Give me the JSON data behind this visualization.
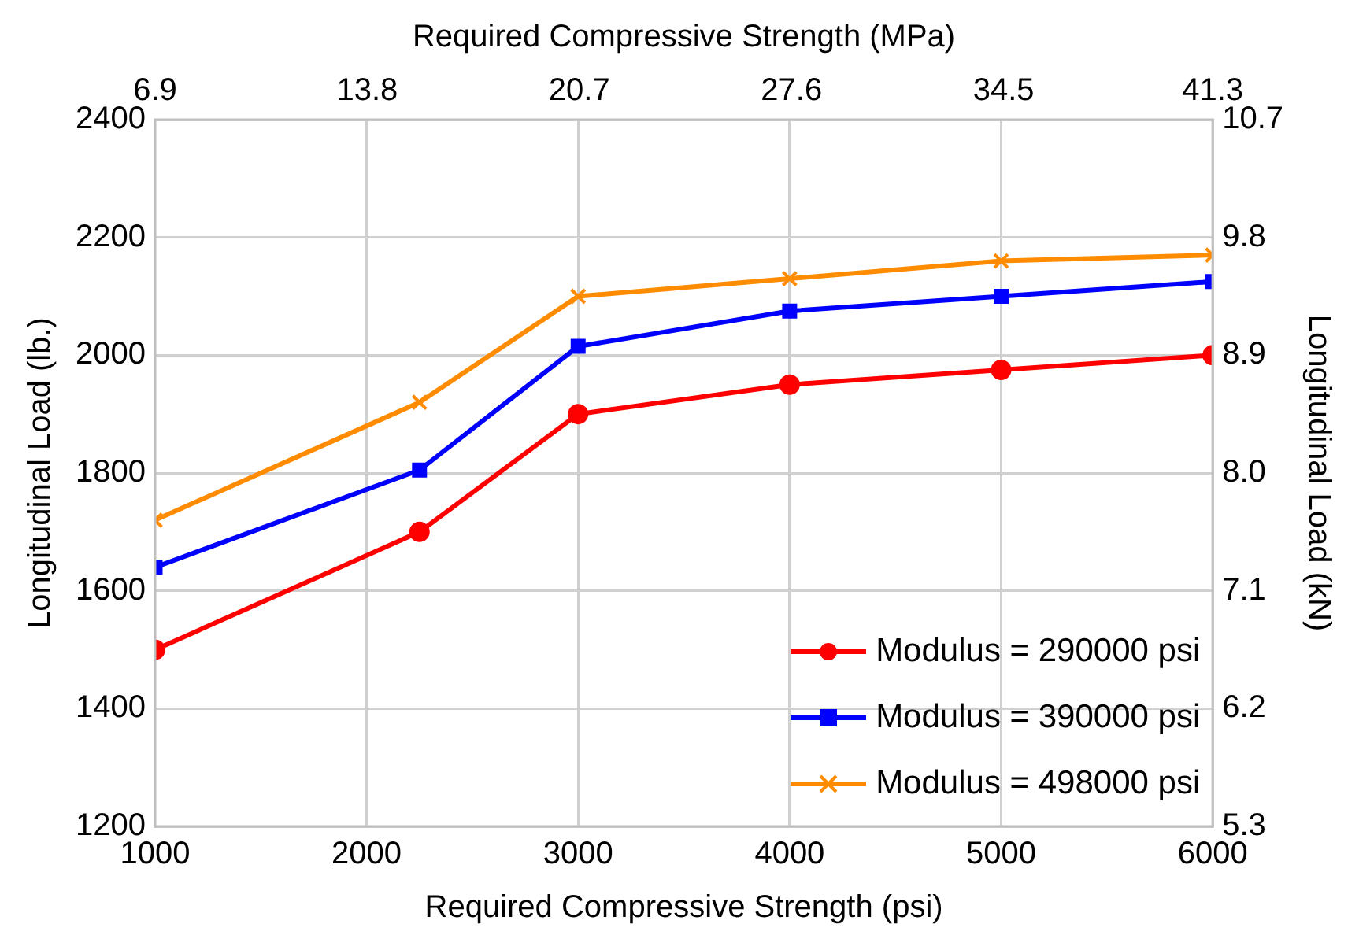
{
  "chart_data": {
    "type": "line",
    "xlabel": "Required Compressive Strength (psi)",
    "x2label": "Required Compressive Strength (MPa)",
    "ylabel": "Longitudinal Load (lb.)",
    "y2label": "Longitudinal Load (kN)",
    "x": [
      1000,
      2250,
      3000,
      4000,
      5000,
      6000
    ],
    "xlim": [
      1000,
      6000
    ],
    "xticks": [
      1000,
      2000,
      3000,
      4000,
      5000,
      6000
    ],
    "x2lim": [
      6.9,
      41.3
    ],
    "x2ticks": [
      6.9,
      13.8,
      20.7,
      27.6,
      34.5,
      41.3
    ],
    "ylim": [
      1200,
      2400
    ],
    "yticks": [
      1200,
      1400,
      1600,
      1800,
      2000,
      2200,
      2400
    ],
    "y2lim": [
      5.3,
      10.7
    ],
    "y2ticks": [
      5.3,
      6.2,
      7.1,
      {
        "value": 8.0,
        "label": "8.0"
      },
      8.9,
      9.8,
      10.7
    ],
    "grid": true,
    "legend": "bottom right",
    "series": [
      {
        "name": "Modulus = 290000 psi",
        "color": "#ff0000",
        "marker": "circle",
        "values": [
          1500,
          1700,
          1900,
          1950,
          1975,
          2000
        ]
      },
      {
        "name": "Modulus = 390000 psi",
        "color": "#0000ff",
        "marker": "square",
        "values": [
          1640,
          1805,
          2015,
          2075,
          2100,
          2125
        ]
      },
      {
        "name": "Modulus = 498000 psi",
        "color": "#ff8c00",
        "marker": "cross",
        "values": [
          1720,
          1920,
          2100,
          2130,
          2160,
          2170
        ]
      }
    ]
  }
}
